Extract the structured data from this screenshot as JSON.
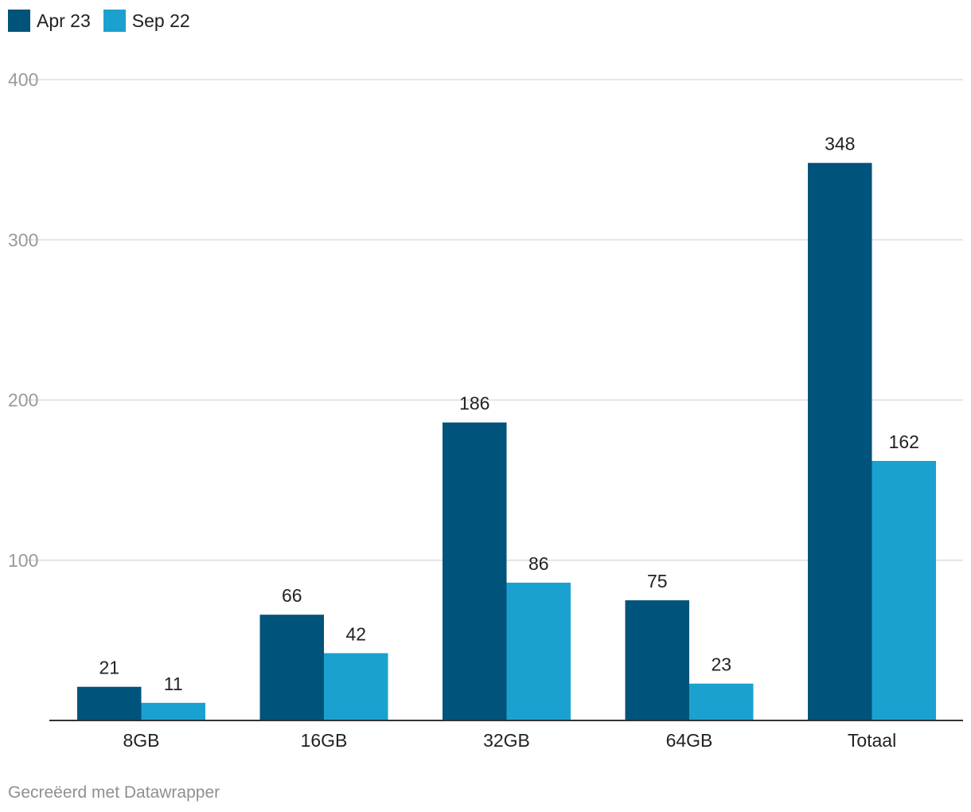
{
  "chart_data": {
    "type": "bar",
    "categories": [
      "8GB",
      "16GB",
      "32GB",
      "64GB",
      "Totaal"
    ],
    "series": [
      {
        "name": "Apr 23",
        "color": "#00537a",
        "values": [
          21,
          66,
          186,
          75,
          348
        ]
      },
      {
        "name": "Sep 22",
        "color": "#1ba1cf",
        "values": [
          11,
          42,
          86,
          23,
          162
        ]
      }
    ],
    "ylim": [
      0,
      400
    ],
    "yticks": [
      100,
      200,
      300,
      400
    ],
    "title": "",
    "xlabel": "",
    "ylabel": "",
    "grid": true,
    "legend": "top-left",
    "data_labels": true
  },
  "credit": "Gecreëerd met Datawrapper"
}
